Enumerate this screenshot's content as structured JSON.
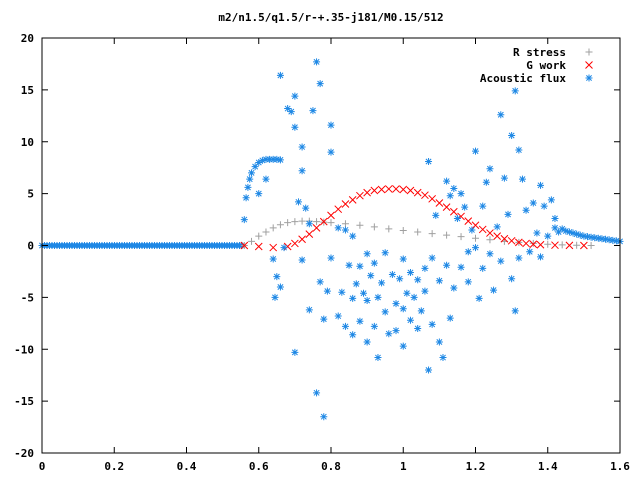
{
  "chart_data": {
    "type": "scatter",
    "title": "m2/n1.5/q1.5/r-+.35-j181/M0.15/512",
    "xlabel": "",
    "ylabel": "",
    "xlim": [
      0,
      1.6
    ],
    "ylim": [
      -20,
      20
    ],
    "x_ticks": [
      0,
      0.2,
      0.4,
      0.6,
      0.8,
      1,
      1.2,
      1.4,
      1.6
    ],
    "x_tick_labels": [
      "0",
      "0.2",
      "0.4",
      "0.6",
      "0.8",
      "1",
      "1.2",
      "1.4",
      "1.6"
    ],
    "y_ticks": [
      -20,
      -15,
      -10,
      -5,
      0,
      5,
      10,
      15,
      20
    ],
    "y_tick_labels": [
      "-20",
      "-15",
      "-10",
      "-5",
      "0",
      "5",
      "10",
      "15",
      "20"
    ],
    "grid": false,
    "legend_position": "top-right",
    "series": [
      {
        "name": "R stress",
        "marker": "plus",
        "color": "#a0a0a0",
        "points": [
          [
            0.56,
            0.0
          ],
          [
            0.58,
            0.4
          ],
          [
            0.6,
            0.9
          ],
          [
            0.62,
            1.3
          ],
          [
            0.64,
            1.7
          ],
          [
            0.66,
            2.0
          ],
          [
            0.68,
            2.2
          ],
          [
            0.7,
            2.3
          ],
          [
            0.72,
            2.35
          ],
          [
            0.74,
            2.35
          ],
          [
            0.76,
            2.3
          ],
          [
            0.78,
            2.25
          ],
          [
            0.8,
            2.2
          ],
          [
            0.84,
            2.1
          ],
          [
            0.88,
            1.95
          ],
          [
            0.92,
            1.8
          ],
          [
            0.96,
            1.6
          ],
          [
            1.0,
            1.45
          ],
          [
            1.04,
            1.3
          ],
          [
            1.08,
            1.15
          ],
          [
            1.12,
            1.0
          ],
          [
            1.16,
            0.85
          ],
          [
            1.2,
            0.7
          ],
          [
            1.24,
            0.55
          ],
          [
            1.28,
            0.4
          ],
          [
            1.32,
            0.3
          ],
          [
            1.36,
            0.2
          ],
          [
            1.4,
            0.12
          ],
          [
            1.44,
            0.06
          ],
          [
            1.48,
            0.02
          ],
          [
            1.52,
            0.0
          ]
        ]
      },
      {
        "name": "G work",
        "marker": "cross",
        "color": "#ff0000",
        "points": [
          [
            0.56,
            0.0
          ],
          [
            0.6,
            -0.1
          ],
          [
            0.64,
            -0.2
          ],
          [
            0.68,
            -0.1
          ],
          [
            0.7,
            0.2
          ],
          [
            0.72,
            0.6
          ],
          [
            0.74,
            1.1
          ],
          [
            0.76,
            1.7
          ],
          [
            0.78,
            2.3
          ],
          [
            0.8,
            2.9
          ],
          [
            0.82,
            3.5
          ],
          [
            0.84,
            4.0
          ],
          [
            0.86,
            4.4
          ],
          [
            0.88,
            4.8
          ],
          [
            0.9,
            5.1
          ],
          [
            0.92,
            5.3
          ],
          [
            0.94,
            5.4
          ],
          [
            0.96,
            5.45
          ],
          [
            0.98,
            5.45
          ],
          [
            1.0,
            5.4
          ],
          [
            1.02,
            5.3
          ],
          [
            1.04,
            5.1
          ],
          [
            1.06,
            4.85
          ],
          [
            1.08,
            4.5
          ],
          [
            1.1,
            4.1
          ],
          [
            1.12,
            3.7
          ],
          [
            1.14,
            3.25
          ],
          [
            1.16,
            2.8
          ],
          [
            1.18,
            2.35
          ],
          [
            1.2,
            1.95
          ],
          [
            1.22,
            1.55
          ],
          [
            1.24,
            1.2
          ],
          [
            1.26,
            0.9
          ],
          [
            1.28,
            0.65
          ],
          [
            1.3,
            0.45
          ],
          [
            1.32,
            0.3
          ],
          [
            1.34,
            0.2
          ],
          [
            1.36,
            0.12
          ],
          [
            1.38,
            0.07
          ],
          [
            1.42,
            0.03
          ],
          [
            1.46,
            0.01
          ],
          [
            1.5,
            0.0
          ]
        ]
      },
      {
        "name": "Acoustic flux",
        "marker": "star",
        "color": "#1e88e5",
        "points": [
          [
            0.56,
            2.5
          ],
          [
            0.565,
            4.6
          ],
          [
            0.57,
            5.6
          ],
          [
            0.575,
            6.4
          ],
          [
            0.58,
            7.0
          ],
          [
            0.59,
            7.6
          ],
          [
            0.6,
            8.0
          ],
          [
            0.61,
            8.2
          ],
          [
            0.62,
            8.3
          ],
          [
            0.63,
            8.3
          ],
          [
            0.64,
            8.3
          ],
          [
            0.65,
            8.3
          ],
          [
            0.66,
            8.25
          ],
          [
            0.62,
            6.4
          ],
          [
            0.6,
            5.0
          ],
          [
            0.64,
            -1.3
          ],
          [
            0.645,
            -5.0
          ],
          [
            0.66,
            -4.0
          ],
          [
            0.65,
            -3.0
          ],
          [
            0.66,
            16.4
          ],
          [
            0.67,
            -0.2
          ],
          [
            0.68,
            13.2
          ],
          [
            0.69,
            12.9
          ],
          [
            0.7,
            14.4
          ],
          [
            0.7,
            11.4
          ],
          [
            0.7,
            -10.3
          ],
          [
            0.71,
            4.2
          ],
          [
            0.72,
            9.5
          ],
          [
            0.72,
            7.2
          ],
          [
            0.72,
            -1.4
          ],
          [
            0.73,
            3.6
          ],
          [
            0.74,
            2.1
          ],
          [
            0.74,
            -6.2
          ],
          [
            0.75,
            13.0
          ],
          [
            0.76,
            17.7
          ],
          [
            0.76,
            -14.2
          ],
          [
            0.77,
            15.6
          ],
          [
            0.77,
            -3.5
          ],
          [
            0.78,
            -7.1
          ],
          [
            0.78,
            -16.5
          ],
          [
            0.79,
            -4.4
          ],
          [
            0.8,
            11.6
          ],
          [
            0.8,
            9.0
          ],
          [
            0.8,
            -1.2
          ],
          [
            0.82,
            1.7
          ],
          [
            0.82,
            -6.8
          ],
          [
            0.83,
            -4.5
          ],
          [
            0.84,
            1.5
          ],
          [
            0.84,
            -7.8
          ],
          [
            0.85,
            -1.9
          ],
          [
            0.86,
            0.9
          ],
          [
            0.86,
            -5.1
          ],
          [
            0.86,
            -8.6
          ],
          [
            0.87,
            -3.7
          ],
          [
            0.88,
            -2.0
          ],
          [
            0.88,
            -7.3
          ],
          [
            0.89,
            -4.6
          ],
          [
            0.9,
            -0.8
          ],
          [
            0.9,
            -5.3
          ],
          [
            0.9,
            -9.3
          ],
          [
            0.91,
            -2.9
          ],
          [
            0.92,
            -1.7
          ],
          [
            0.92,
            -7.8
          ],
          [
            0.93,
            -10.8
          ],
          [
            0.93,
            -5.0
          ],
          [
            0.94,
            -3.6
          ],
          [
            0.95,
            -0.7
          ],
          [
            0.95,
            -6.4
          ],
          [
            0.96,
            -8.5
          ],
          [
            0.97,
            -2.8
          ],
          [
            0.98,
            -5.6
          ],
          [
            0.98,
            -8.2
          ],
          [
            0.99,
            -3.2
          ],
          [
            1.0,
            -1.3
          ],
          [
            1.0,
            -6.1
          ],
          [
            1.0,
            -9.7
          ],
          [
            1.01,
            -4.6
          ],
          [
            1.02,
            -2.6
          ],
          [
            1.02,
            -7.2
          ],
          [
            1.03,
            -5.0
          ],
          [
            1.04,
            -3.3
          ],
          [
            1.04,
            -8.0
          ],
          [
            1.05,
            -6.3
          ],
          [
            1.06,
            -2.2
          ],
          [
            1.06,
            -4.4
          ],
          [
            1.07,
            8.1
          ],
          [
            1.07,
            -12.0
          ],
          [
            1.08,
            -7.6
          ],
          [
            1.08,
            -1.2
          ],
          [
            1.09,
            2.9
          ],
          [
            1.1,
            -3.4
          ],
          [
            1.1,
            -9.3
          ],
          [
            1.11,
            -10.8
          ],
          [
            1.12,
            6.2
          ],
          [
            1.12,
            -1.9
          ],
          [
            1.13,
            4.8
          ],
          [
            1.13,
            -7.0
          ],
          [
            1.14,
            5.5
          ],
          [
            1.14,
            -4.1
          ],
          [
            1.15,
            2.6
          ],
          [
            1.16,
            5.0
          ],
          [
            1.16,
            -2.1
          ],
          [
            1.17,
            3.7
          ],
          [
            1.18,
            -0.6
          ],
          [
            1.18,
            -3.5
          ],
          [
            1.19,
            1.5
          ],
          [
            1.2,
            9.1
          ],
          [
            1.2,
            -0.2
          ],
          [
            1.21,
            -5.1
          ],
          [
            1.22,
            3.8
          ],
          [
            1.22,
            -2.2
          ],
          [
            1.23,
            6.1
          ],
          [
            1.24,
            7.4
          ],
          [
            1.24,
            -0.8
          ],
          [
            1.25,
            -4.3
          ],
          [
            1.26,
            1.8
          ],
          [
            1.27,
            12.6
          ],
          [
            1.27,
            -1.5
          ],
          [
            1.28,
            6.5
          ],
          [
            1.29,
            3.0
          ],
          [
            1.3,
            10.6
          ],
          [
            1.3,
            -3.2
          ],
          [
            1.31,
            14.9
          ],
          [
            1.31,
            -6.3
          ],
          [
            1.32,
            9.2
          ],
          [
            1.32,
            -1.2
          ],
          [
            1.33,
            6.4
          ],
          [
            1.34,
            3.4
          ],
          [
            1.35,
            -0.6
          ],
          [
            1.36,
            4.1
          ],
          [
            1.37,
            1.2
          ],
          [
            1.38,
            5.8
          ],
          [
            1.38,
            -1.1
          ],
          [
            1.39,
            3.8
          ],
          [
            1.4,
            0.9
          ],
          [
            1.41,
            4.4
          ],
          [
            1.42,
            2.6
          ],
          [
            1.42,
            1.7
          ],
          [
            1.43,
            1.3
          ],
          [
            1.44,
            1.6
          ],
          [
            1.45,
            1.4
          ],
          [
            1.46,
            1.3
          ],
          [
            1.47,
            1.2
          ],
          [
            1.48,
            1.1
          ],
          [
            1.49,
            1.0
          ],
          [
            1.5,
            0.9
          ],
          [
            1.51,
            0.85
          ],
          [
            1.52,
            0.8
          ],
          [
            1.53,
            0.75
          ],
          [
            1.54,
            0.7
          ],
          [
            1.55,
            0.65
          ],
          [
            1.56,
            0.6
          ],
          [
            1.57,
            0.55
          ],
          [
            1.58,
            0.5
          ],
          [
            1.59,
            0.45
          ],
          [
            1.6,
            0.4
          ]
        ]
      }
    ]
  }
}
